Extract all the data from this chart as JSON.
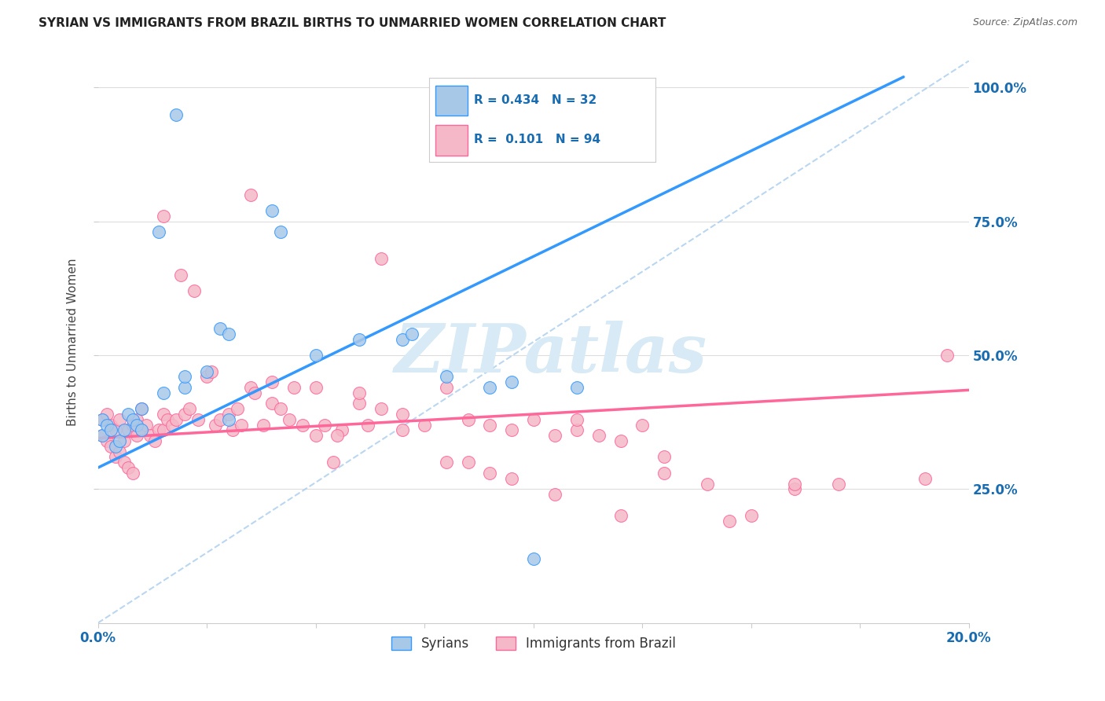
{
  "title": "SYRIAN VS IMMIGRANTS FROM BRAZIL BIRTHS TO UNMARRIED WOMEN CORRELATION CHART",
  "source": "Source: ZipAtlas.com",
  "ylabel": "Births to Unmarried Women",
  "legend_blue_r": "R = 0.434",
  "legend_blue_n": "N = 32",
  "legend_pink_r": "R =  0.101",
  "legend_pink_n": "N = 94",
  "legend_labels": [
    "Syrians",
    "Immigrants from Brazil"
  ],
  "blue_color": "#a8c8e8",
  "pink_color": "#f4b8c8",
  "line_blue": "#3399ff",
  "line_pink": "#ff6699",
  "line_diag": "#aaccee",
  "watermark_color": "#d8eaf5",
  "xlim": [
    0.0,
    0.2
  ],
  "ylim": [
    0.0,
    1.05
  ],
  "blue_line_x": [
    0.0,
    0.185
  ],
  "blue_line_y": [
    0.29,
    1.02
  ],
  "pink_line_x": [
    0.0,
    0.2
  ],
  "pink_line_y": [
    0.345,
    0.435
  ],
  "diag_line_x": [
    0.0,
    0.2
  ],
  "diag_line_y": [
    0.0,
    1.05
  ],
  "axis_color": "#1a6cb0",
  "grid_color": "#dddddd",
  "background_color": "#ffffff",
  "title_fontsize": 11,
  "blue_x": [
    0.018,
    0.04,
    0.042,
    0.014,
    0.028,
    0.03,
    0.05,
    0.07,
    0.072,
    0.001,
    0.001,
    0.002,
    0.003,
    0.004,
    0.005,
    0.006,
    0.007,
    0.008,
    0.009,
    0.01,
    0.01,
    0.015,
    0.02,
    0.025,
    0.08,
    0.09,
    0.095,
    0.1,
    0.11,
    0.02,
    0.03,
    0.06
  ],
  "blue_y": [
    0.95,
    0.77,
    0.73,
    0.73,
    0.55,
    0.54,
    0.5,
    0.53,
    0.54,
    0.38,
    0.35,
    0.37,
    0.36,
    0.33,
    0.34,
    0.36,
    0.39,
    0.38,
    0.37,
    0.4,
    0.36,
    0.43,
    0.44,
    0.47,
    0.46,
    0.44,
    0.45,
    0.12,
    0.44,
    0.46,
    0.38,
    0.53
  ],
  "pink_x": [
    0.001,
    0.001,
    0.002,
    0.002,
    0.003,
    0.003,
    0.004,
    0.004,
    0.005,
    0.005,
    0.006,
    0.006,
    0.007,
    0.007,
    0.008,
    0.008,
    0.009,
    0.009,
    0.01,
    0.01,
    0.011,
    0.012,
    0.013,
    0.014,
    0.015,
    0.015,
    0.016,
    0.017,
    0.018,
    0.019,
    0.02,
    0.021,
    0.022,
    0.023,
    0.025,
    0.026,
    0.027,
    0.028,
    0.03,
    0.031,
    0.032,
    0.033,
    0.035,
    0.036,
    0.038,
    0.04,
    0.042,
    0.044,
    0.045,
    0.047,
    0.05,
    0.052,
    0.054,
    0.056,
    0.06,
    0.062,
    0.065,
    0.07,
    0.075,
    0.08,
    0.085,
    0.09,
    0.095,
    0.1,
    0.105,
    0.11,
    0.115,
    0.12,
    0.125,
    0.13,
    0.035,
    0.04,
    0.015,
    0.065,
    0.05,
    0.055,
    0.06,
    0.07,
    0.08,
    0.085,
    0.09,
    0.095,
    0.11,
    0.13,
    0.15,
    0.17,
    0.19,
    0.195,
    0.14,
    0.16,
    0.105,
    0.12,
    0.145,
    0.16
  ],
  "pink_y": [
    0.38,
    0.35,
    0.39,
    0.34,
    0.37,
    0.33,
    0.36,
    0.31,
    0.38,
    0.32,
    0.34,
    0.3,
    0.36,
    0.29,
    0.37,
    0.28,
    0.38,
    0.35,
    0.4,
    0.36,
    0.37,
    0.35,
    0.34,
    0.36,
    0.39,
    0.36,
    0.38,
    0.37,
    0.38,
    0.65,
    0.39,
    0.4,
    0.62,
    0.38,
    0.46,
    0.47,
    0.37,
    0.38,
    0.39,
    0.36,
    0.4,
    0.37,
    0.44,
    0.43,
    0.37,
    0.41,
    0.4,
    0.38,
    0.44,
    0.37,
    0.35,
    0.37,
    0.3,
    0.36,
    0.41,
    0.37,
    0.4,
    0.36,
    0.37,
    0.3,
    0.38,
    0.37,
    0.36,
    0.38,
    0.35,
    0.36,
    0.35,
    0.34,
    0.37,
    0.31,
    0.8,
    0.45,
    0.76,
    0.68,
    0.44,
    0.35,
    0.43,
    0.39,
    0.44,
    0.3,
    0.28,
    0.27,
    0.38,
    0.28,
    0.2,
    0.26,
    0.27,
    0.5,
    0.26,
    0.25,
    0.24,
    0.2,
    0.19,
    0.26
  ]
}
